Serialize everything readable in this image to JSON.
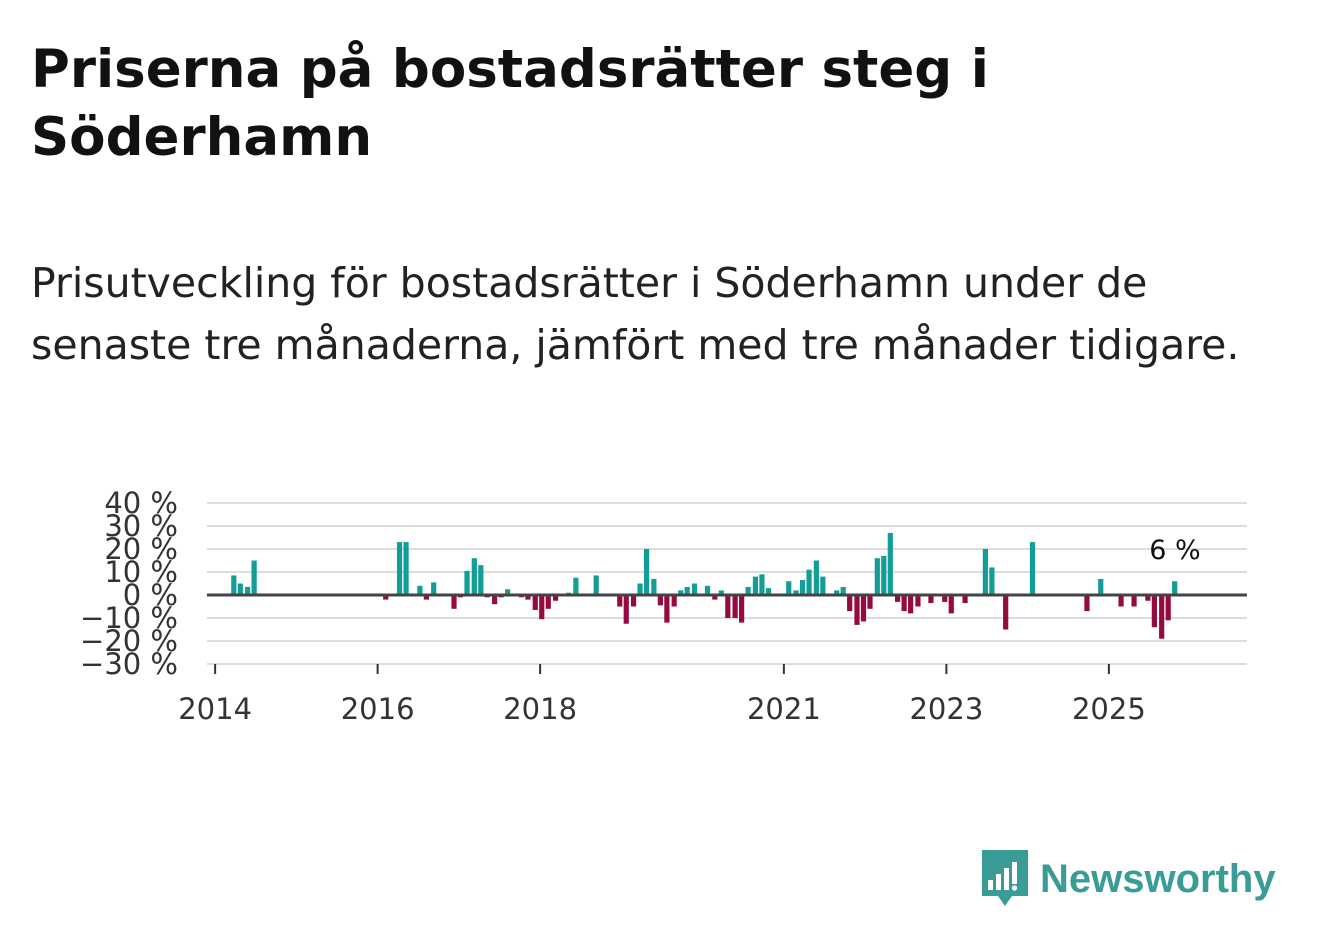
{
  "title": "Priserna på bostadsrätter steg i Söderhamn",
  "subtitle": "Prisutveckling för bostadsrätter i Söderhamn under de senaste tre månaderna, jämfört med tre månader tidigare.",
  "brand": {
    "name": "Newsworthy",
    "color": "#3a9c97"
  },
  "chart_data": {
    "type": "bar",
    "title": "",
    "xlabel": "",
    "ylabel": "",
    "ylim": [
      -30,
      40
    ],
    "xlim": [
      2013.9,
      2026.7
    ],
    "y_ticks": [
      {
        "value": 40,
        "label": "40 %"
      },
      {
        "value": 30,
        "label": "30 %"
      },
      {
        "value": 20,
        "label": "20 %"
      },
      {
        "value": 10,
        "label": "10 %"
      },
      {
        "value": 0,
        "label": "0 %"
      },
      {
        "value": -10,
        "label": "−10 %"
      },
      {
        "value": -20,
        "label": "−20 %"
      },
      {
        "value": -30,
        "label": "−30 %"
      }
    ],
    "x_ticks": [
      {
        "value": 2014,
        "label": "2014"
      },
      {
        "value": 2016,
        "label": "2016"
      },
      {
        "value": 2018,
        "label": "2018"
      },
      {
        "value": 2021,
        "label": "2021"
      },
      {
        "value": 2023,
        "label": "2023"
      },
      {
        "value": 2025,
        "label": "2025"
      }
    ],
    "colors": {
      "positive": "#129e96",
      "negative": "#960a40",
      "zero_line": "#444444",
      "grid": "#dddddd"
    },
    "last_value_label": "6 %",
    "series": [
      {
        "name": "Prisutveckling",
        "points": [
          {
            "x": 2014.23,
            "y": 8.5
          },
          {
            "x": 2014.31,
            "y": 5
          },
          {
            "x": 2014.4,
            "y": 3.5
          },
          {
            "x": 2014.48,
            "y": 15
          },
          {
            "x": 2016.1,
            "y": -2
          },
          {
            "x": 2016.27,
            "y": 23
          },
          {
            "x": 2016.35,
            "y": 23
          },
          {
            "x": 2016.52,
            "y": 4
          },
          {
            "x": 2016.6,
            "y": -2
          },
          {
            "x": 2016.69,
            "y": 5.5
          },
          {
            "x": 2016.94,
            "y": -6
          },
          {
            "x": 2017.02,
            "y": -1
          },
          {
            "x": 2017.1,
            "y": 10.5
          },
          {
            "x": 2017.19,
            "y": 16
          },
          {
            "x": 2017.27,
            "y": 13
          },
          {
            "x": 2017.35,
            "y": -1
          },
          {
            "x": 2017.44,
            "y": -4
          },
          {
            "x": 2017.52,
            "y": -1
          },
          {
            "x": 2017.6,
            "y": 2.5
          },
          {
            "x": 2017.77,
            "y": -1
          },
          {
            "x": 2017.85,
            "y": -2
          },
          {
            "x": 2017.94,
            "y": -6.5
          },
          {
            "x": 2018.02,
            "y": -10.5
          },
          {
            "x": 2018.1,
            "y": -6
          },
          {
            "x": 2018.19,
            "y": -2.5
          },
          {
            "x": 2018.35,
            "y": 1
          },
          {
            "x": 2018.44,
            "y": 7.5
          },
          {
            "x": 2018.69,
            "y": 8.5
          },
          {
            "x": 2018.98,
            "y": -5
          },
          {
            "x": 2019.06,
            "y": -12.5
          },
          {
            "x": 2019.15,
            "y": -5
          },
          {
            "x": 2019.23,
            "y": 5
          },
          {
            "x": 2019.31,
            "y": 20
          },
          {
            "x": 2019.4,
            "y": 7
          },
          {
            "x": 2019.48,
            "y": -4.5
          },
          {
            "x": 2019.56,
            "y": -12
          },
          {
            "x": 2019.65,
            "y": -5
          },
          {
            "x": 2019.73,
            "y": 2
          },
          {
            "x": 2019.81,
            "y": 3.5
          },
          {
            "x": 2019.9,
            "y": 5
          },
          {
            "x": 2020.06,
            "y": 4
          },
          {
            "x": 2020.15,
            "y": -2
          },
          {
            "x": 2020.23,
            "y": 2
          },
          {
            "x": 2020.31,
            "y": -10
          },
          {
            "x": 2020.4,
            "y": -10
          },
          {
            "x": 2020.48,
            "y": -12
          },
          {
            "x": 2020.56,
            "y": 3.5
          },
          {
            "x": 2020.65,
            "y": 8
          },
          {
            "x": 2020.73,
            "y": 9
          },
          {
            "x": 2020.81,
            "y": 3
          },
          {
            "x": 2021.06,
            "y": 6
          },
          {
            "x": 2021.15,
            "y": 2
          },
          {
            "x": 2021.23,
            "y": 6.5
          },
          {
            "x": 2021.31,
            "y": 11
          },
          {
            "x": 2021.4,
            "y": 15
          },
          {
            "x": 2021.48,
            "y": 8
          },
          {
            "x": 2021.65,
            "y": 2
          },
          {
            "x": 2021.73,
            "y": 3.5
          },
          {
            "x": 2021.81,
            "y": -7
          },
          {
            "x": 2021.9,
            "y": -13
          },
          {
            "x": 2021.98,
            "y": -11.5
          },
          {
            "x": 2022.06,
            "y": -6
          },
          {
            "x": 2022.15,
            "y": 16
          },
          {
            "x": 2022.23,
            "y": 17
          },
          {
            "x": 2022.31,
            "y": 27
          },
          {
            "x": 2022.4,
            "y": -3
          },
          {
            "x": 2022.48,
            "y": -7
          },
          {
            "x": 2022.56,
            "y": -8
          },
          {
            "x": 2022.65,
            "y": -5
          },
          {
            "x": 2022.81,
            "y": -3.5
          },
          {
            "x": 2022.98,
            "y": -3
          },
          {
            "x": 2023.06,
            "y": -8
          },
          {
            "x": 2023.23,
            "y": -3.5
          },
          {
            "x": 2023.48,
            "y": 20
          },
          {
            "x": 2023.56,
            "y": 12
          },
          {
            "x": 2023.73,
            "y": -15
          },
          {
            "x": 2024.06,
            "y": 23
          },
          {
            "x": 2024.73,
            "y": -7
          },
          {
            "x": 2024.9,
            "y": 7
          },
          {
            "x": 2025.15,
            "y": -5
          },
          {
            "x": 2025.31,
            "y": -5
          },
          {
            "x": 2025.48,
            "y": -2.5
          },
          {
            "x": 2025.56,
            "y": -14
          },
          {
            "x": 2025.65,
            "y": -19
          },
          {
            "x": 2025.73,
            "y": -11
          },
          {
            "x": 2025.81,
            "y": 6
          }
        ]
      }
    ]
  }
}
